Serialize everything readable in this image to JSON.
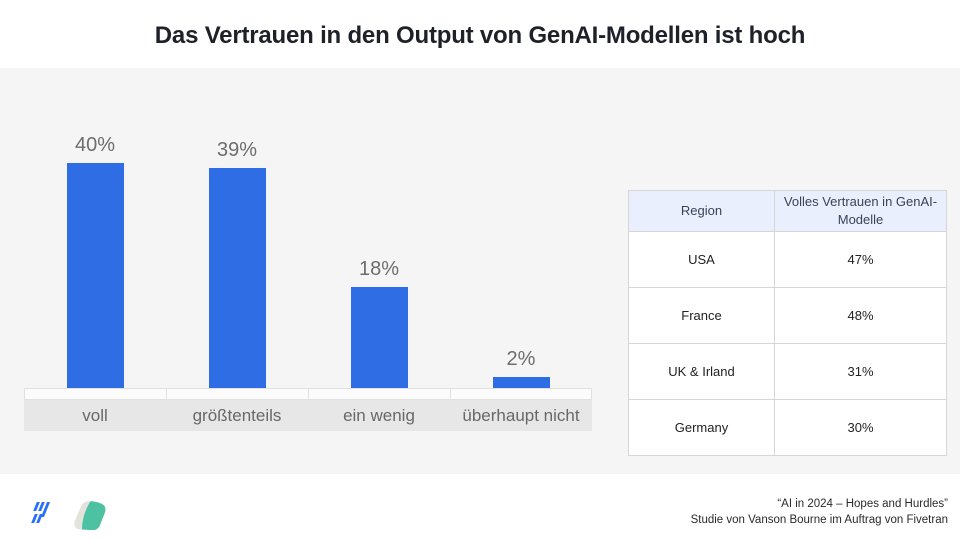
{
  "title": "Das Vertrauen in den Output von GenAI-Modellen ist hoch",
  "chart_data": {
    "type": "bar",
    "categories": [
      "voll",
      "größtenteils",
      "ein wenig",
      "überhaupt nicht"
    ],
    "values": [
      40,
      39,
      18,
      2
    ],
    "value_labels": [
      "40%",
      "39%",
      "18%",
      "2%"
    ],
    "title": "",
    "xlabel": "",
    "ylabel": "",
    "ylim": [
      0,
      42
    ],
    "grid": false,
    "legend": "none",
    "bar_color": "#2e6de4",
    "label_color": "#6d6d6d"
  },
  "table": {
    "headers": [
      "Region",
      "Volles Vertrauen in GenAI-Modelle"
    ],
    "rows": [
      {
        "region": "USA",
        "value": "47%"
      },
      {
        "region": "France",
        "value": "48%"
      },
      {
        "region": "UK & Irland",
        "value": "31%"
      },
      {
        "region": "Germany",
        "value": "30%"
      }
    ]
  },
  "footer": {
    "source_line1": "“AI in 2024 – Hopes and Hurdles”",
    "source_line2": "Studie von Vanson Bourne im Auftrag von Fivetran",
    "logos": [
      {
        "name": "fivetran-logo",
        "color": "#2970f6"
      },
      {
        "name": "vanson-bourne-logo",
        "color_main": "#4cc2a2",
        "color_accent": "#e3e3dc"
      }
    ]
  },
  "colors": {
    "panel_bg": "#f5f5f6",
    "label_band_bg": "#e7e7e8",
    "table_header_bg": "#e9effc",
    "bar_blue": "#2e6de4",
    "title_text": "#1f2128"
  }
}
